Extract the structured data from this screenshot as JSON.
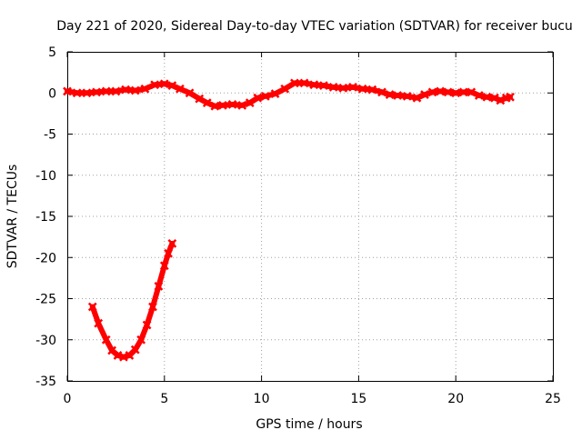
{
  "chart_data": {
    "type": "scatter",
    "title": "Day 221 of 2020, Sidereal Day-to-day VTEC variation (SDTVAR) for receiver bucu",
    "xlabel": "GPS time / hours",
    "ylabel": "SDTVAR / TECUs",
    "xlim": [
      0,
      25
    ],
    "ylim": [
      -35,
      5
    ],
    "xticks": [
      0,
      5,
      10,
      15,
      20,
      25
    ],
    "yticks": [
      5,
      0,
      -5,
      -10,
      -15,
      -20,
      -25,
      -30,
      -35
    ],
    "grid": true,
    "legend": "none",
    "series": [
      {
        "name": "upper trace",
        "color": "#ff0000",
        "points": [
          [
            0.0,
            0.2
          ],
          [
            0.5,
            0.0
          ],
          [
            1.0,
            0.0
          ],
          [
            1.5,
            0.1
          ],
          [
            2.0,
            0.2
          ],
          [
            2.5,
            0.2
          ],
          [
            3.0,
            0.4
          ],
          [
            3.5,
            0.3
          ],
          [
            4.0,
            0.5
          ],
          [
            4.5,
            1.0
          ],
          [
            5.0,
            1.1
          ],
          [
            5.4,
            0.9
          ],
          [
            5.8,
            0.5
          ],
          [
            6.3,
            0.0
          ],
          [
            6.8,
            -0.7
          ],
          [
            7.2,
            -1.2
          ],
          [
            7.6,
            -1.6
          ],
          [
            8.0,
            -1.5
          ],
          [
            8.5,
            -1.4
          ],
          [
            9.0,
            -1.5
          ],
          [
            9.4,
            -1.2
          ],
          [
            9.8,
            -0.6
          ],
          [
            10.2,
            -0.4
          ],
          [
            10.7,
            -0.1
          ],
          [
            11.2,
            0.5
          ],
          [
            11.7,
            1.2
          ],
          [
            12.2,
            1.2
          ],
          [
            12.7,
            1.0
          ],
          [
            13.2,
            0.9
          ],
          [
            13.7,
            0.7
          ],
          [
            14.2,
            0.6
          ],
          [
            14.7,
            0.7
          ],
          [
            15.2,
            0.5
          ],
          [
            15.7,
            0.4
          ],
          [
            16.2,
            0.1
          ],
          [
            16.6,
            -0.2
          ],
          [
            17.0,
            -0.3
          ],
          [
            17.5,
            -0.4
          ],
          [
            18.0,
            -0.6
          ],
          [
            18.4,
            -0.2
          ],
          [
            18.8,
            0.1
          ],
          [
            19.2,
            0.2
          ],
          [
            19.6,
            0.1
          ],
          [
            20.0,
            0.0
          ],
          [
            20.4,
            0.1
          ],
          [
            20.8,
            0.1
          ],
          [
            21.2,
            -0.3
          ],
          [
            21.6,
            -0.5
          ],
          [
            22.0,
            -0.6
          ],
          [
            22.3,
            -0.9
          ],
          [
            22.6,
            -0.6
          ],
          [
            22.8,
            -0.5
          ]
        ]
      },
      {
        "name": "lower trace",
        "color": "#ff0000",
        "points": [
          [
            1.3,
            -26.0
          ],
          [
            1.6,
            -28.0
          ],
          [
            2.0,
            -30.0
          ],
          [
            2.3,
            -31.3
          ],
          [
            2.6,
            -31.9
          ],
          [
            2.9,
            -32.1
          ],
          [
            3.2,
            -31.9
          ],
          [
            3.5,
            -31.2
          ],
          [
            3.8,
            -30.0
          ],
          [
            4.1,
            -28.2
          ],
          [
            4.4,
            -26.0
          ],
          [
            4.7,
            -23.5
          ],
          [
            5.0,
            -21.0
          ],
          [
            5.2,
            -19.5
          ],
          [
            5.4,
            -18.3
          ]
        ]
      }
    ]
  }
}
